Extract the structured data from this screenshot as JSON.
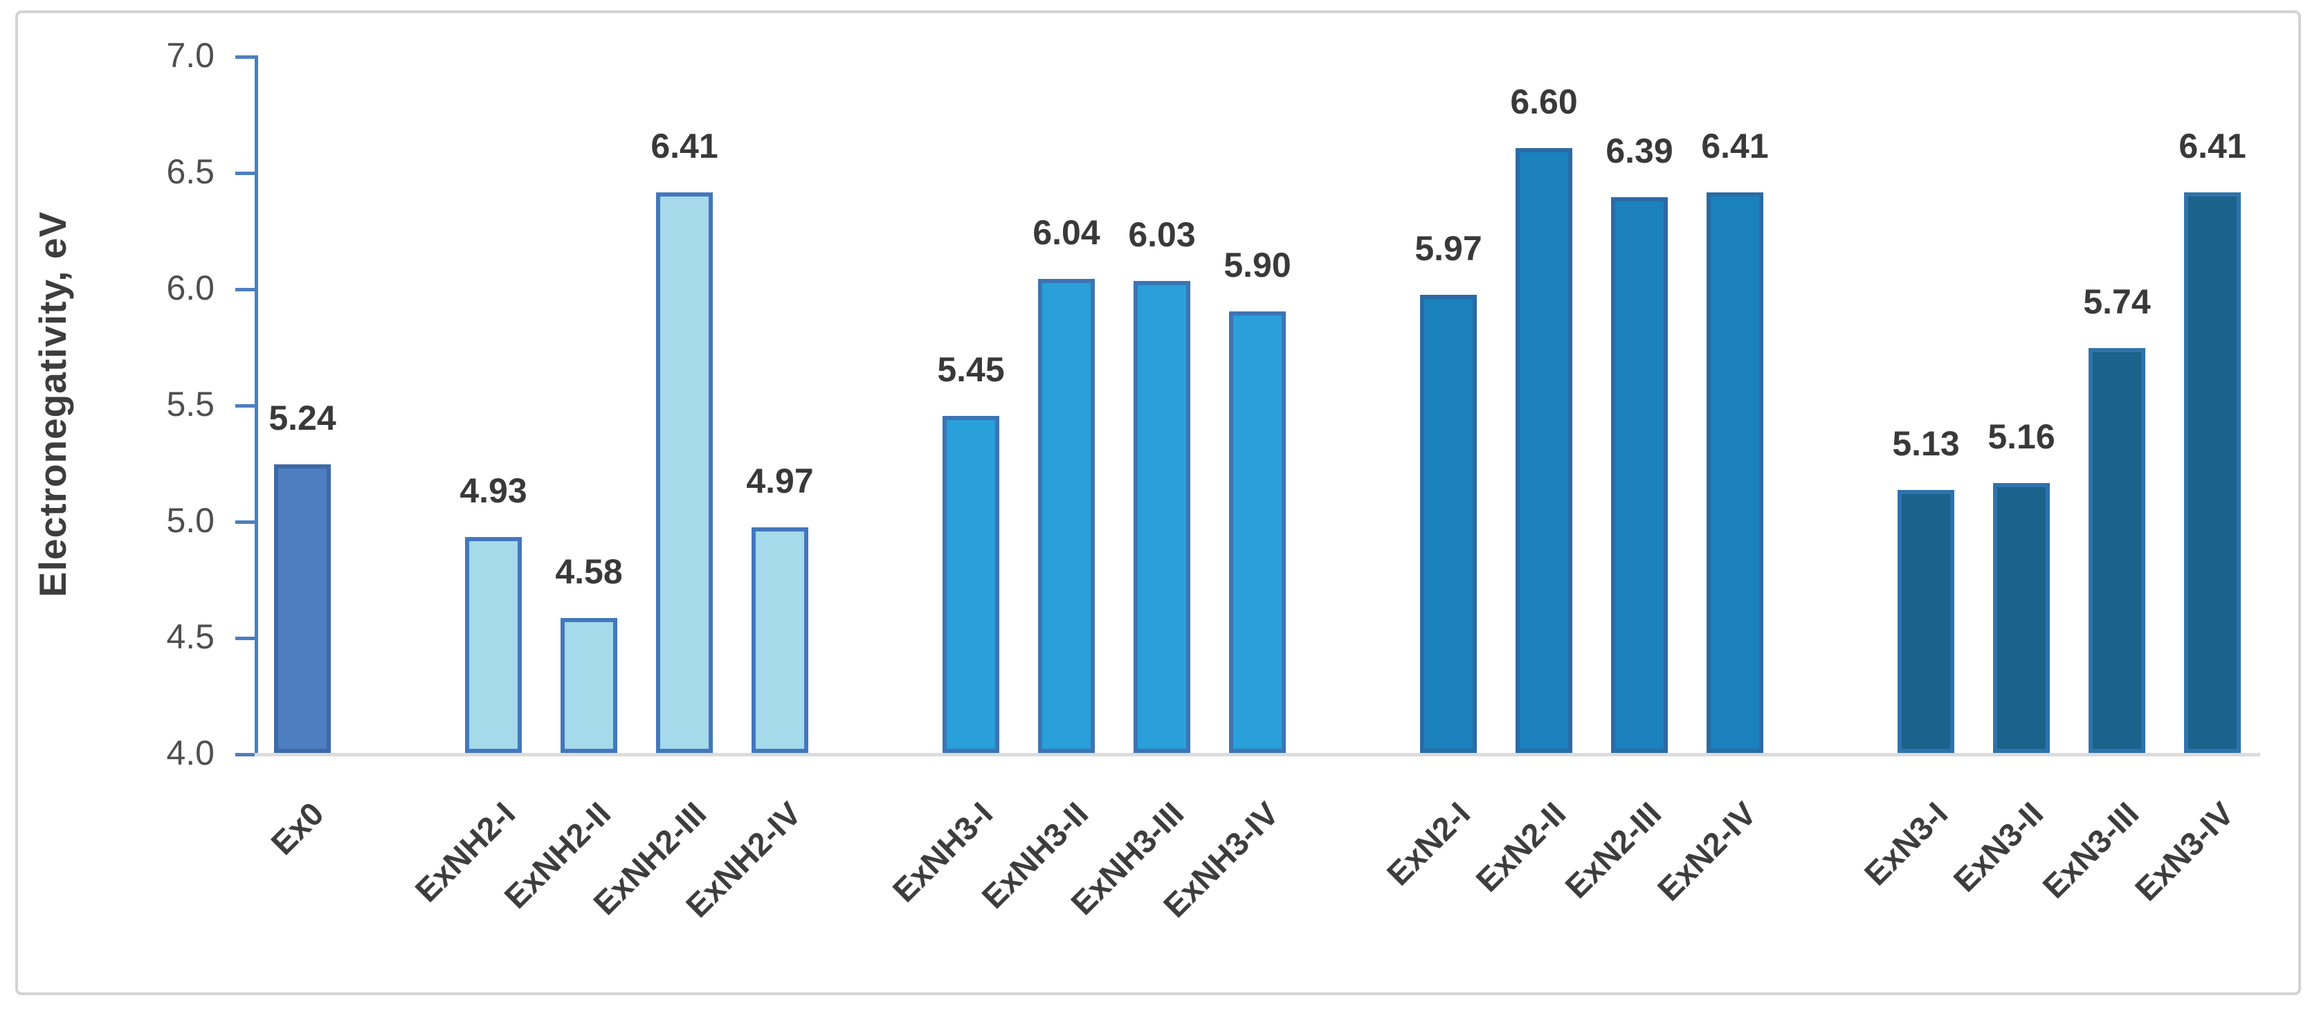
{
  "figure": {
    "background": "#ffffff",
    "panel_border_color": "#d3d3d3",
    "axis_color": "#4d7ec0",
    "baseline_color": "#dcdcdc",
    "text_color": "#3d3d3d"
  },
  "chart_data": {
    "type": "bar",
    "title": "",
    "xlabel": "",
    "ylabel": "Electronegativity, eV",
    "ylim": [
      4.0,
      7.0
    ],
    "ytick_step": 0.5,
    "ytick_labels": [
      "7.0",
      "6.5",
      "6.0",
      "5.5",
      "5.0",
      "4.5",
      "4.0"
    ],
    "grid": false,
    "legend": "none",
    "groups": [
      {
        "name": "Ex0",
        "fill": "#4d7ebf",
        "border": "#3e69a6",
        "categories": [
          "Ex0"
        ],
        "values": [
          5.24
        ],
        "value_labels": [
          "5.24"
        ]
      },
      {
        "name": "ExNH2",
        "fill": "#a6d9ea",
        "border": "#4377bd",
        "categories": [
          "ExNH2-I",
          "ExNH2-II",
          "ExNH2-III",
          "ExNH2-IV"
        ],
        "values": [
          4.93,
          4.58,
          6.41,
          4.97
        ],
        "value_labels": [
          "4.93",
          "4.58",
          "6.41",
          "4.97"
        ]
      },
      {
        "name": "ExNH3",
        "fill": "#29a0da",
        "border": "#3d74b4",
        "categories": [
          "ExNH3-I",
          "ExNH3-II",
          "ExNH3-III",
          "ExNH3-IV"
        ],
        "values": [
          5.45,
          6.04,
          6.03,
          5.9
        ],
        "value_labels": [
          "5.45",
          "6.04",
          "6.03",
          "5.90"
        ]
      },
      {
        "name": "ExN2",
        "fill": "#1a81bd",
        "border": "#2b6aa6",
        "categories": [
          "ExN2-I",
          "ExN2-II",
          "ExN2-III",
          "ExN2-IV"
        ],
        "values": [
          5.97,
          6.6,
          6.39,
          6.41
        ],
        "value_labels": [
          "5.97",
          "6.60",
          "6.39",
          "6.41"
        ]
      },
      {
        "name": "ExN3",
        "fill": "#1b628c",
        "border": "#2e73ac",
        "categories": [
          "ExN3-I",
          "ExN3-II",
          "ExN3-III",
          "ExN3-IV"
        ],
        "values": [
          5.13,
          5.16,
          5.74,
          6.41
        ],
        "value_labels": [
          "5.13",
          "5.16",
          "5.74",
          "6.41"
        ]
      }
    ]
  }
}
